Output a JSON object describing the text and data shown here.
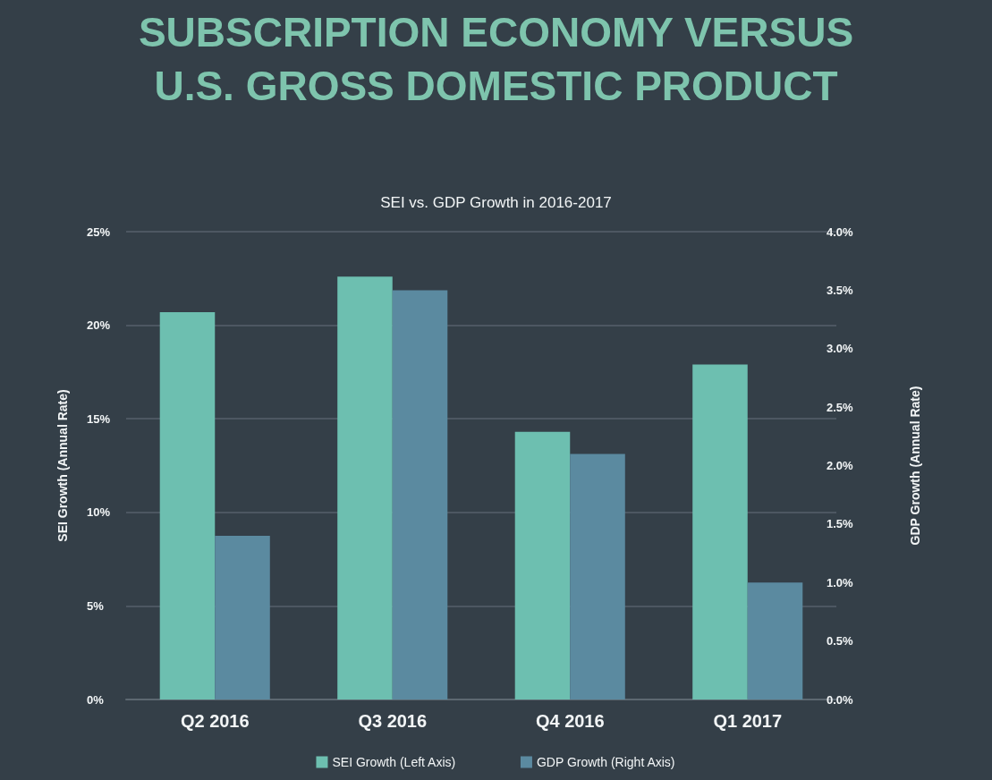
{
  "chart_data": {
    "type": "bar",
    "title": "SUBSCRIPTION ECONOMY VERSUS U.S. GROSS DOMESTIC PRODUCT",
    "subtitle": "SEI vs. GDP Growth in 2016-2017",
    "ylabel": "SEI Growth (Annual Rate)",
    "y2label": "GDP Growth (Annual Rate)",
    "categories": [
      "Q2 2016",
      "Q3 2016",
      "Q4 2016",
      "Q1 2017"
    ],
    "series": [
      {
        "name": "SEI Growth (Left Axis)",
        "color": "#6dbfb0",
        "values": [
          20.7,
          22.6,
          14.3,
          17.9
        ]
      },
      {
        "name": "GDP Growth (Right Axis)",
        "color": "#5b8aa0",
        "axis": "y2",
        "values": [
          1.4,
          3.5,
          2.1,
          1.0
        ]
      }
    ],
    "ylim": [
      0,
      25
    ],
    "yticks": [
      {
        "value": 0,
        "label": "0%"
      },
      {
        "value": 5,
        "label": "5%"
      },
      {
        "value": 10,
        "label": "10%"
      },
      {
        "value": 15,
        "label": "15%"
      },
      {
        "value": 20,
        "label": "20%"
      },
      {
        "value": 25,
        "label": "25%"
      }
    ],
    "y2lim": [
      0,
      4
    ],
    "y2ticks": [
      {
        "value": 0,
        "label": "0.0%"
      },
      {
        "value": 0.5,
        "label": "0.5%"
      },
      {
        "value": 1,
        "label": "1.0%"
      },
      {
        "value": 1.5,
        "label": "1.5%"
      },
      {
        "value": 2,
        "label": "2.0%"
      },
      {
        "value": 2.5,
        "label": "2.5%"
      },
      {
        "value": 3,
        "label": "3.0%"
      },
      {
        "value": 3.5,
        "label": "3.5%"
      },
      {
        "value": 4,
        "label": "4.0%"
      }
    ],
    "grid": "y",
    "legend": "bottom"
  }
}
